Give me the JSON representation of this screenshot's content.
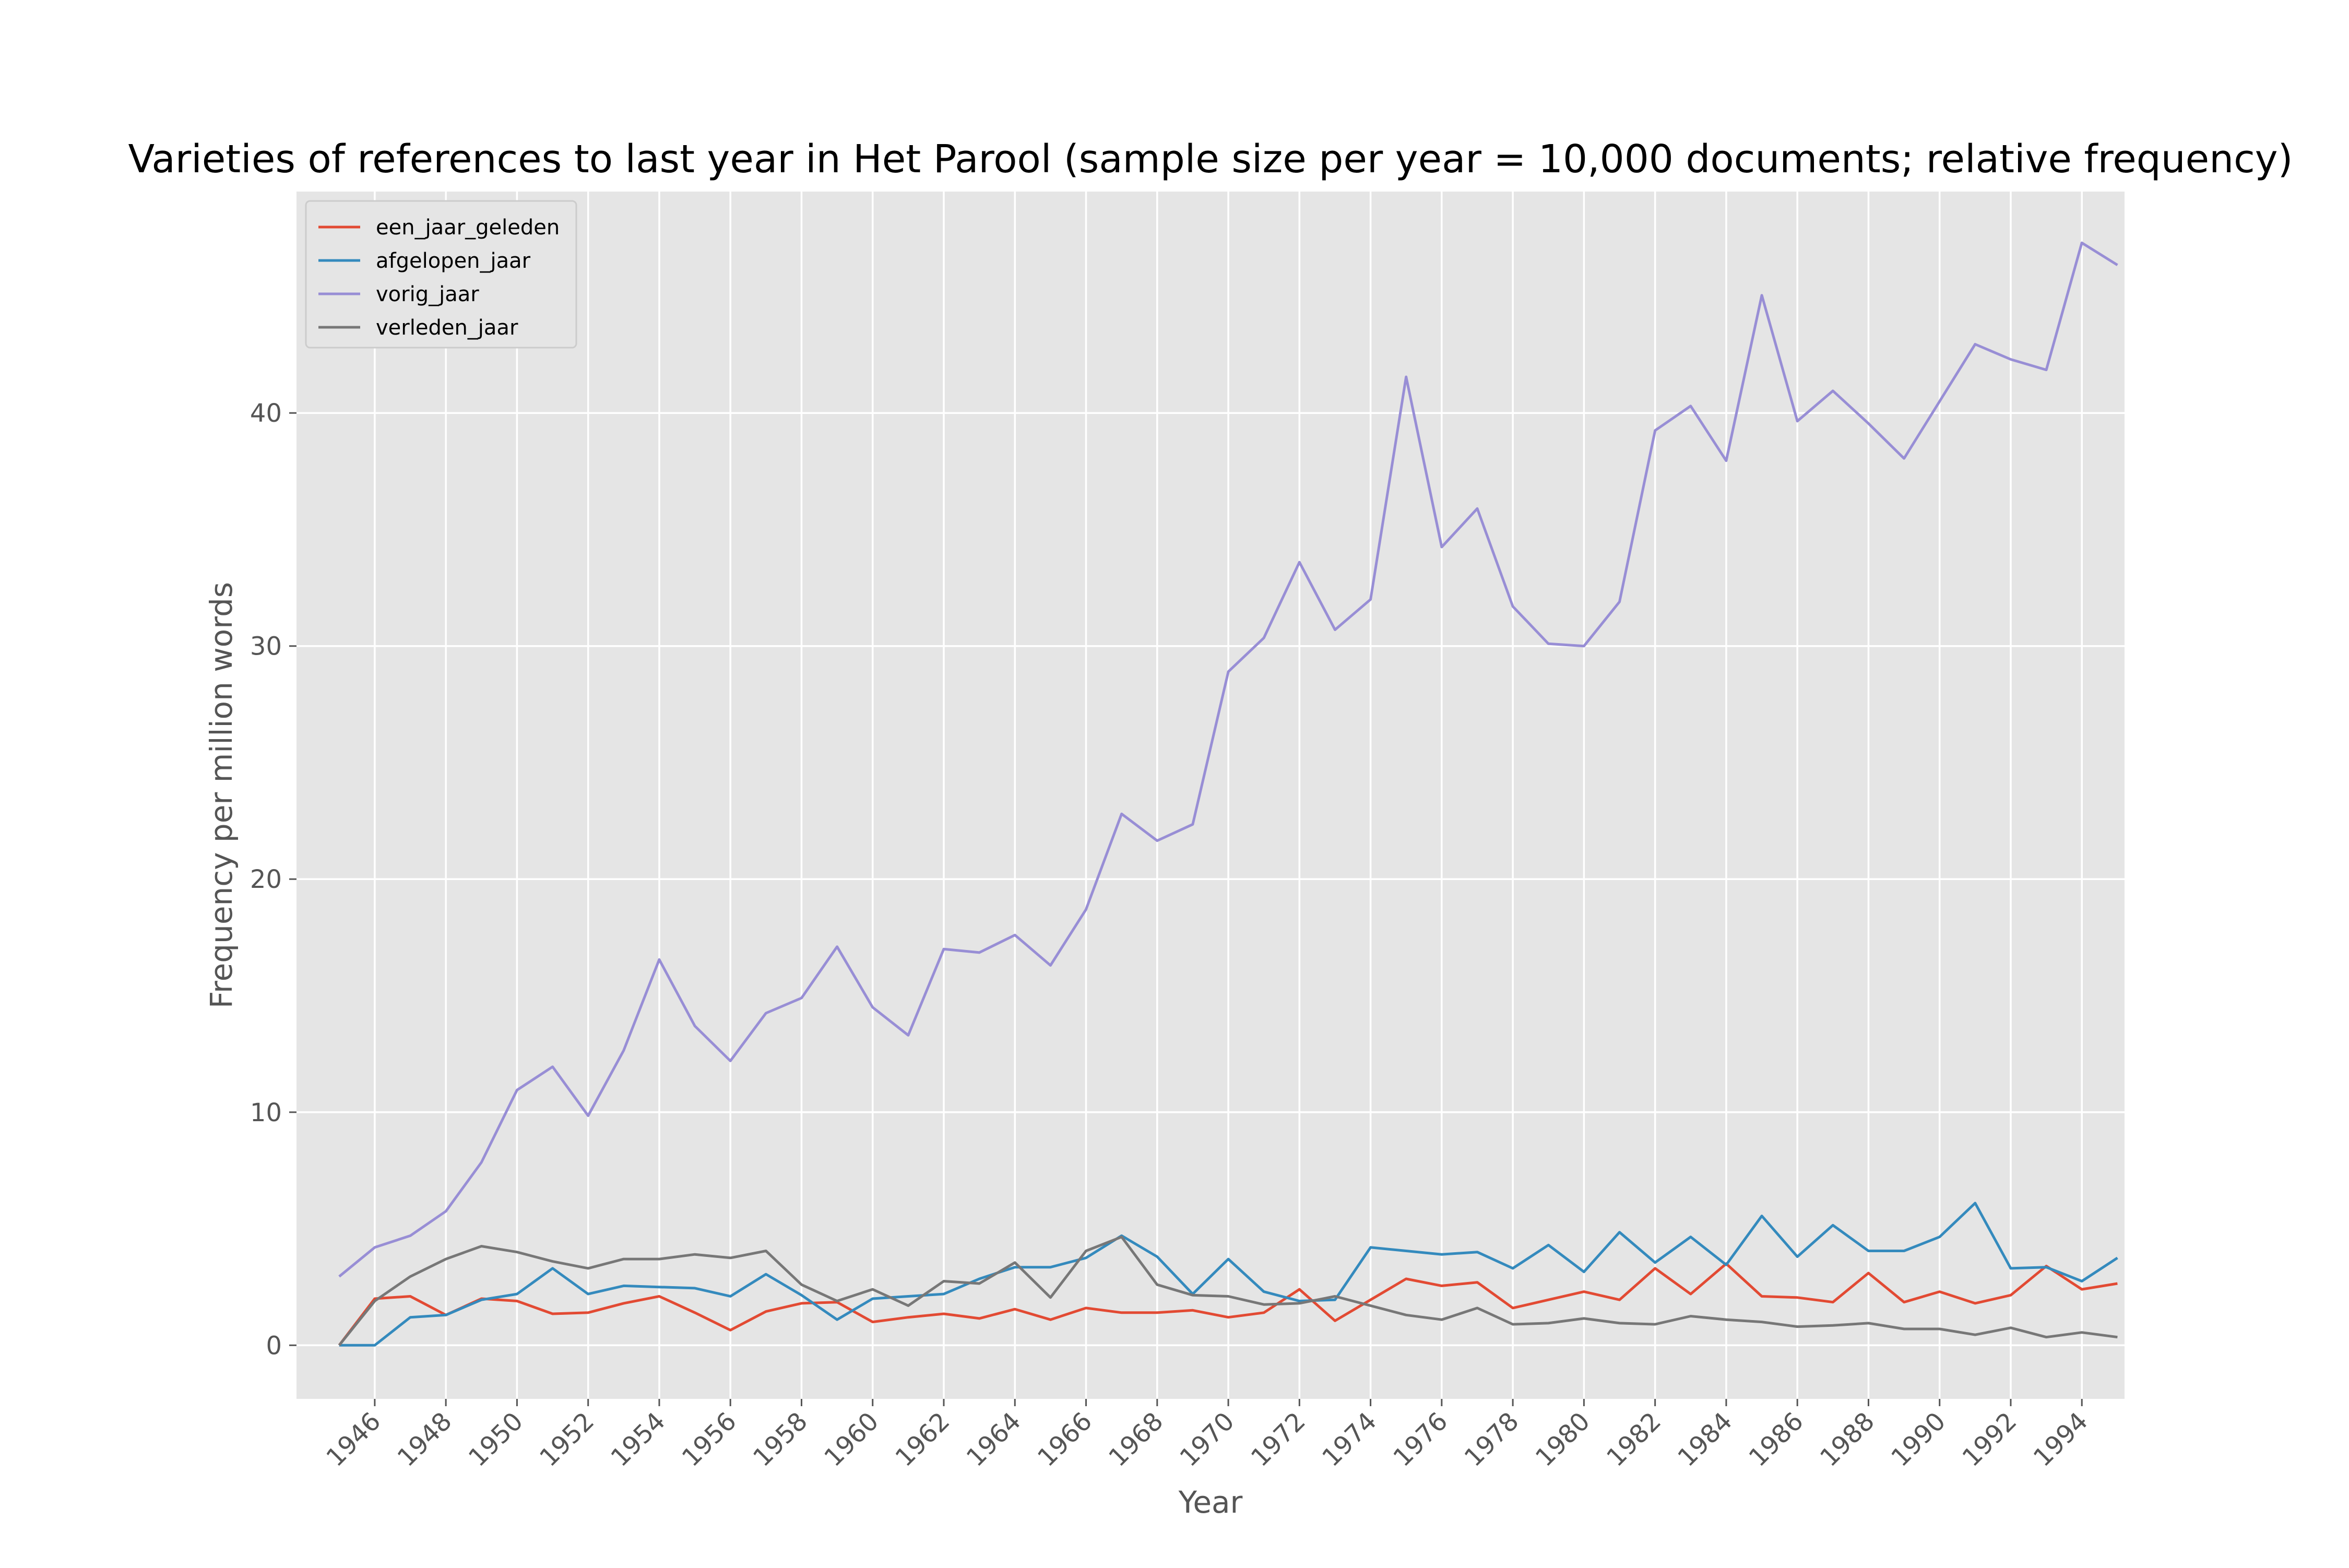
{
  "chart_data": {
    "type": "line",
    "title": "Varieties of references to last year in Het Parool (sample size per year = 10,000 documents; relative frequency)",
    "xlabel": "Year",
    "ylabel": "Frequency per million words",
    "xlim": [
      1943.8,
      1995.2
    ],
    "ylim": [
      -2.3,
      49.5
    ],
    "x_ticks": [
      1946,
      1948,
      1950,
      1952,
      1954,
      1956,
      1958,
      1960,
      1962,
      1964,
      1966,
      1968,
      1970,
      1972,
      1974,
      1976,
      1978,
      1980,
      1982,
      1984,
      1986,
      1988,
      1990,
      1992,
      1994
    ],
    "x_tick_labels": [
      "1946",
      "1948",
      "1950",
      "1952",
      "1954",
      "1956",
      "1958",
      "1960",
      "1962",
      "1964",
      "1966",
      "1968",
      "1970",
      "1972",
      "1974",
      "1976",
      "1978",
      "1980",
      "1982",
      "1984",
      "1986",
      "1988",
      "1990",
      "1992",
      "1994"
    ],
    "y_ticks": [
      0,
      10,
      20,
      30,
      40
    ],
    "y_tick_labels": [
      "0",
      "10",
      "20",
      "30",
      "40"
    ],
    "grid": true,
    "legend": "top-left",
    "x": [
      1945,
      1946,
      1947,
      1948,
      1949,
      1950,
      1951,
      1952,
      1953,
      1954,
      1955,
      1956,
      1957,
      1958,
      1959,
      1960,
      1961,
      1962,
      1963,
      1964,
      1965,
      1966,
      1967,
      1968,
      1969,
      1970,
      1971,
      1972,
      1973,
      1974,
      1975,
      1976,
      1977,
      1978,
      1979,
      1980,
      1981,
      1982,
      1983,
      1984,
      1985,
      1986,
      1987,
      1988,
      1989,
      1990,
      1991,
      1992,
      1993,
      1994,
      1995
    ],
    "series": [
      {
        "name": "een_jaar_geleden",
        "color": "#E24A33",
        "values": [
          0,
          2.0,
          2.1,
          1.3,
          2.0,
          1.9,
          1.35,
          1.4,
          1.8,
          2.1,
          1.4,
          0.65,
          1.45,
          1.8,
          1.85,
          1.0,
          1.2,
          1.35,
          1.15,
          1.55,
          1.1,
          1.6,
          1.4,
          1.4,
          1.5,
          1.2,
          1.4,
          2.4,
          1.05,
          1.95,
          2.85,
          2.55,
          2.7,
          1.6,
          1.95,
          2.3,
          1.95,
          3.3,
          2.2,
          3.5,
          2.1,
          2.05,
          1.85,
          3.1,
          1.85,
          2.3,
          1.8,
          2.15,
          3.4,
          2.4,
          2.65
        ]
      },
      {
        "name": "afgelopen_jaar",
        "color": "#348ABD",
        "values": [
          0,
          0,
          1.2,
          1.3,
          1.95,
          2.2,
          3.3,
          2.2,
          2.55,
          2.5,
          2.45,
          2.1,
          3.05,
          2.15,
          1.1,
          2.0,
          2.1,
          2.2,
          2.85,
          3.35,
          3.35,
          3.75,
          4.7,
          3.8,
          2.2,
          3.7,
          2.3,
          1.9,
          1.95,
          4.2,
          4.05,
          3.9,
          4.0,
          3.3,
          4.3,
          3.15,
          4.85,
          3.55,
          4.65,
          3.45,
          5.55,
          3.8,
          5.15,
          4.05,
          4.05,
          4.65,
          6.1,
          3.3,
          3.35,
          2.75,
          3.75
        ]
      },
      {
        "name": "vorig_jaar",
        "color": "#988ED5",
        "values": [
          2.95,
          4.2,
          4.7,
          5.75,
          7.85,
          10.95,
          11.95,
          9.85,
          12.65,
          16.55,
          13.7,
          12.2,
          14.25,
          14.9,
          17.1,
          14.5,
          13.3,
          17.0,
          16.85,
          17.6,
          16.3,
          18.7,
          22.8,
          21.65,
          22.35,
          28.9,
          30.35,
          33.6,
          30.7,
          32.0,
          41.55,
          34.25,
          35.9,
          31.7,
          30.1,
          30.0,
          31.9,
          39.25,
          40.3,
          37.95,
          45.05,
          39.65,
          40.95,
          39.55,
          38.05,
          40.5,
          42.95,
          42.3,
          41.85,
          47.3,
          46.35
        ]
      },
      {
        "name": "verleden_jaar",
        "color": "#777777",
        "values": [
          0,
          1.9,
          2.95,
          3.7,
          4.25,
          4.0,
          3.6,
          3.3,
          3.7,
          3.7,
          3.9,
          3.75,
          4.05,
          2.6,
          1.9,
          2.4,
          1.7,
          2.75,
          2.65,
          3.55,
          2.05,
          4.05,
          4.65,
          2.6,
          2.15,
          2.1,
          1.75,
          1.8,
          2.1,
          1.7,
          1.3,
          1.1,
          1.6,
          0.9,
          0.95,
          1.15,
          0.95,
          0.9,
          1.25,
          1.1,
          1.0,
          0.8,
          0.85,
          0.95,
          0.7,
          0.7,
          0.45,
          0.75,
          0.35,
          0.55,
          0.35
        ]
      }
    ]
  }
}
